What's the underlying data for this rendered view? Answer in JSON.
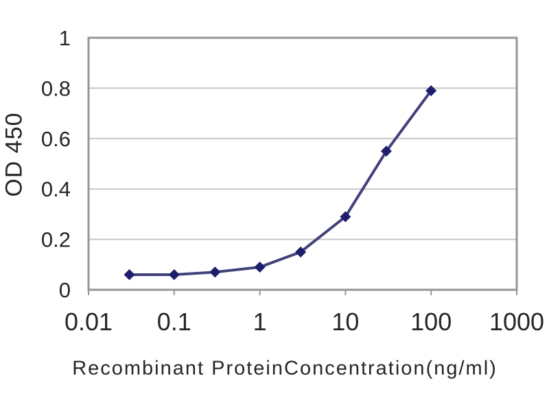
{
  "chart_data": {
    "type": "line",
    "x": [
      0.03,
      0.1,
      0.3,
      1,
      3,
      10,
      30,
      100
    ],
    "y": [
      0.06,
      0.06,
      0.07,
      0.09,
      0.15,
      0.29,
      0.55,
      0.79
    ],
    "xlabel": "Recombinant ProteinConcentration(ng/ml)",
    "ylabel": "OD 450",
    "x_scale": "log",
    "xlim": [
      0.01,
      1000
    ],
    "ylim": [
      0,
      1
    ],
    "x_tick_labels": [
      "0.01",
      "0.1",
      "1",
      "10",
      "100",
      "1000"
    ],
    "x_tick_values": [
      0.01,
      0.1,
      1,
      10,
      100,
      1000
    ],
    "y_tick_labels": [
      "0",
      "0.2",
      "0.4",
      "0.6",
      "0.8",
      "1"
    ],
    "y_tick_values": [
      0,
      0.2,
      0.4,
      0.6,
      0.8,
      1
    ],
    "grid": "horizontal-major",
    "legend": "none",
    "marker": "diamond",
    "colors": {
      "line": "#42427a",
      "marker": "#1e1e6e",
      "grid": "#c6c6c6",
      "frame": "#969696",
      "text": "#262626",
      "background": "#ffffff"
    }
  }
}
